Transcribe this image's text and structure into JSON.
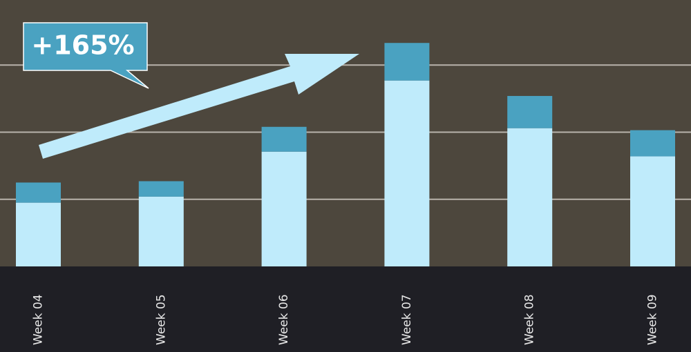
{
  "chart_data": {
    "type": "stacked-bar",
    "annotation": "+165%",
    "categories": [
      "Week 04",
      "Week 05",
      "Week 06",
      "Week 07",
      "Week 08",
      "Week 09"
    ],
    "series": [
      {
        "color": "#bfebfb",
        "values": [
          0.95,
          1.04,
          1.71,
          2.77,
          2.06,
          1.64
        ]
      },
      {
        "color": "#4aa2c1",
        "values": [
          0.3,
          0.23,
          0.37,
          0.56,
          0.48,
          0.39
        ]
      }
    ],
    "ylim": [
      0,
      3.97
    ],
    "yticks": [
      1,
      2,
      3
    ],
    "grid": true
  }
}
